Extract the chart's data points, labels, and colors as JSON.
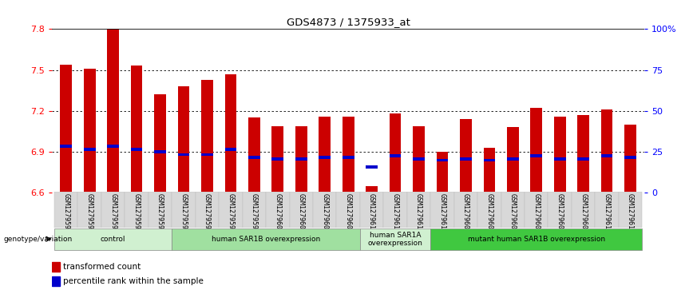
{
  "title": "GDS4873 / 1375933_at",
  "samples": [
    "GSM1279591",
    "GSM1279592",
    "GSM1279593",
    "GSM1279594",
    "GSM1279595",
    "GSM1279596",
    "GSM1279597",
    "GSM1279598",
    "GSM1279599",
    "GSM1279600",
    "GSM1279601",
    "GSM1279602",
    "GSM1279603",
    "GSM1279612",
    "GSM1279613",
    "GSM1279614",
    "GSM1279615",
    "GSM1279604",
    "GSM1279605",
    "GSM1279606",
    "GSM1279607",
    "GSM1279608",
    "GSM1279609",
    "GSM1279610",
    "GSM1279611"
  ],
  "transformed_count": [
    7.54,
    7.51,
    7.81,
    7.53,
    7.32,
    7.38,
    7.43,
    7.47,
    7.15,
    7.09,
    7.09,
    7.16,
    7.16,
    6.65,
    7.18,
    7.09,
    6.9,
    7.14,
    6.93,
    7.08,
    7.22,
    7.16,
    7.17,
    7.21,
    7.1
  ],
  "percentile_rank": [
    6.94,
    6.92,
    6.94,
    6.92,
    6.9,
    6.88,
    6.88,
    6.92,
    6.86,
    6.85,
    6.85,
    6.86,
    6.86,
    6.79,
    6.87,
    6.85,
    6.84,
    6.85,
    6.84,
    6.85,
    6.87,
    6.85,
    6.85,
    6.87,
    6.86
  ],
  "groups": [
    {
      "label": "control",
      "start": 0,
      "end": 5,
      "color": "#d0f0d0"
    },
    {
      "label": "human SAR1B overexpression",
      "start": 5,
      "end": 13,
      "color": "#a0e0a0"
    },
    {
      "label": "human SAR1A\noverexpression",
      "start": 13,
      "end": 16,
      "color": "#d0f0d0"
    },
    {
      "label": "mutant human SAR1B overexpression",
      "start": 16,
      "end": 25,
      "color": "#40c840"
    }
  ],
  "ylim": [
    6.6,
    7.8
  ],
  "y_ticks": [
    6.6,
    6.9,
    7.2,
    7.5,
    7.8
  ],
  "right_y_ticks": [
    0,
    25,
    50,
    75,
    100
  ],
  "right_y_labels": [
    "0",
    "25",
    "50",
    "75",
    "100%"
  ],
  "bar_color": "#cc0000",
  "percentile_color": "#0000cc",
  "bar_width": 0.5
}
